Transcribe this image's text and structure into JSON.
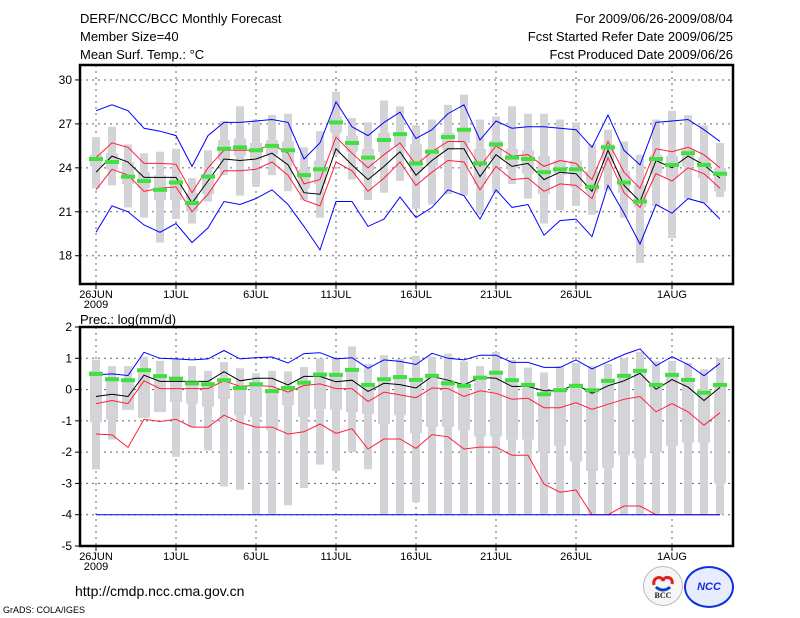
{
  "header": {
    "title": "DERF/NCC/BCC Monthly Forecast",
    "member_size": "Member Size=40",
    "variable": "Mean Surf. Temp.: °C",
    "period": "For 2009/06/26-2009/08/04",
    "started": "Fcst Started Refer Date 2009/06/25",
    "produced": "Fcst Produced Date 2009/06/26"
  },
  "footer": {
    "url": "http://cmdp.ncc.cma.gov.cn",
    "grads": "GrADS: COLA/IGES",
    "logo_bcc": "BCC",
    "logo_ncc": "NCC"
  },
  "colors": {
    "envelope": "#0000ff",
    "spread": "#ff1e3c",
    "mean": "#000000",
    "marker": "#40e040",
    "box": "#d4d4d8"
  },
  "chart_data": [
    {
      "type": "box-line",
      "title": "Mean Surf. Temp.: °C",
      "ylim": [
        16.07,
        31.02
      ],
      "yticks": [
        30,
        27,
        24,
        21,
        18
      ],
      "xticks": [
        {
          "day": 0,
          "label": "26JUN",
          "sub": "2009"
        },
        {
          "day": 5,
          "label": "1JUL"
        },
        {
          "day": 10,
          "label": "6JUL"
        },
        {
          "day": 15,
          "label": "11JUL"
        },
        {
          "day": 20,
          "label": "16JUL"
        },
        {
          "day": 25,
          "label": "21JUL"
        },
        {
          "day": 30,
          "label": "26JUL"
        },
        {
          "day": 36,
          "label": "1AUG"
        }
      ],
      "grid": true,
      "whisker_hi": [
        26.1,
        26.8,
        25.6,
        25.0,
        25.1,
        25.3,
        23.3,
        25.2,
        27.2,
        28.2,
        27.3,
        27.6,
        27.7,
        25.4,
        26.5,
        29.2,
        27.4,
        27.1,
        28.6,
        28.2,
        26.9,
        27.3,
        28.3,
        29.0,
        27.3,
        27.5,
        28.2,
        27.7,
        27.7,
        27.3,
        27.1,
        25.6,
        26.6,
        25.8,
        24.9,
        27.3,
        27.9,
        27.6,
        26.9,
        25.7
      ],
      "box_hi": [
        24.9,
        25.0,
        24.4,
        23.7,
        23.5,
        23.4,
        22.3,
        23.5,
        25.9,
        26.0,
        25.7,
        25.9,
        25.8,
        23.9,
        24.5,
        27.5,
        26.2,
        25.3,
        26.4,
        26.4,
        25.6,
        25.3,
        26.4,
        26.7,
        25.3,
        25.9,
        25.3,
        25.2,
        24.8,
        24.5,
        24.5,
        23.8,
        25.6,
        23.8,
        22.8,
        24.9,
        24.8,
        25.3,
        24.7,
        24.0
      ],
      "box_lo": [
        24.1,
        23.9,
        22.9,
        22.6,
        21.8,
        21.8,
        21.0,
        22.2,
        24.5,
        24.8,
        24.5,
        24.9,
        24.4,
        22.6,
        22.9,
        26.4,
        25.1,
        23.5,
        25.1,
        25.4,
        23.7,
        24.1,
        25.2,
        25.7,
        22.9,
        24.6,
        24.0,
        23.6,
        22.2,
        23.5,
        22.7,
        22.3,
        24.3,
        22.3,
        21.3,
        23.6,
        23.3,
        24.1,
        23.3,
        22.4
      ],
      "whisker_lo": [
        22.6,
        22.8,
        21.3,
        20.6,
        18.9,
        20.5,
        20.2,
        21.7,
        23.5,
        22.1,
        22.7,
        23.5,
        22.4,
        21.8,
        20.6,
        24.9,
        23.2,
        21.8,
        22.3,
        23.1,
        21.2,
        21.5,
        22.2,
        22.1,
        20.8,
        22.3,
        22.9,
        21.9,
        20.2,
        21.1,
        21.4,
        20.8,
        22.5,
        20.6,
        17.5,
        21.4,
        19.2,
        21.9,
        21.6,
        22.0
      ],
      "series": [
        {
          "name": "max",
          "color": "#0000ff",
          "values": [
            27.9,
            28.3,
            27.9,
            26.7,
            26.5,
            26.2,
            24.1,
            26.2,
            27.1,
            27.1,
            27.2,
            27.3,
            27.1,
            24.6,
            25.7,
            28.5,
            26.8,
            26.2,
            27.1,
            27.8,
            26.0,
            26.6,
            27.7,
            28.3,
            25.9,
            27.2,
            26.7,
            26.8,
            26.8,
            26.7,
            26.6,
            25.4,
            27.6,
            25.2,
            24.2,
            27.1,
            27.2,
            27.3,
            26.6,
            25.8
          ]
        },
        {
          "name": "upper",
          "color": "#ff1e3c",
          "values": [
            24.7,
            25.7,
            25.4,
            24.3,
            24.3,
            24.25,
            22.3,
            24.0,
            25.2,
            25.2,
            25.2,
            25.6,
            25.0,
            22.9,
            23.2,
            26.1,
            25.0,
            24.0,
            24.9,
            25.7,
            24.2,
            25.1,
            25.8,
            25.8,
            24.1,
            25.5,
            24.8,
            24.9,
            24.1,
            24.5,
            24.3,
            23.2,
            25.8,
            23.7,
            22.6,
            25.3,
            25.1,
            25.4,
            24.9,
            24.0
          ]
        },
        {
          "name": "mean",
          "color": "#000000",
          "values": [
            23.7,
            24.8,
            24.4,
            23.35,
            23.35,
            23.35,
            21.6,
            23.1,
            24.6,
            24.5,
            24.6,
            25.0,
            24.2,
            22.3,
            22.2,
            25.3,
            24.2,
            23.2,
            24.1,
            25.1,
            23.5,
            24.5,
            25.3,
            25.3,
            23.4,
            24.9,
            24.1,
            24.3,
            23.2,
            23.7,
            23.6,
            22.4,
            25.2,
            22.8,
            21.7,
            24.5,
            24.0,
            24.8,
            24.2,
            23.3
          ]
        },
        {
          "name": "lower",
          "color": "#ff1e3c",
          "values": [
            22.5,
            23.9,
            23.5,
            22.4,
            22.6,
            22.7,
            21.0,
            22.2,
            23.8,
            23.8,
            23.9,
            24.4,
            23.5,
            21.8,
            21.4,
            24.4,
            23.8,
            22.4,
            23.3,
            24.4,
            22.8,
            23.7,
            24.5,
            24.4,
            22.5,
            24.1,
            23.2,
            23.3,
            22.4,
            22.9,
            22.8,
            21.9,
            24.7,
            22.3,
            21.3,
            23.6,
            23.1,
            24.0,
            23.6,
            22.6
          ]
        },
        {
          "name": "min",
          "color": "#0000ff",
          "values": [
            19.6,
            21.4,
            21.0,
            20.1,
            19.6,
            20.2,
            18.9,
            19.9,
            21.7,
            21.5,
            21.9,
            22.5,
            21.5,
            20.0,
            18.4,
            21.7,
            21.7,
            20.0,
            20.5,
            22.0,
            20.6,
            21.3,
            22.5,
            22.1,
            20.5,
            22.5,
            21.3,
            21.5,
            19.4,
            20.4,
            20.5,
            19.3,
            22.8,
            20.9,
            18.8,
            21.5,
            20.9,
            21.9,
            21.6,
            20.5
          ]
        }
      ],
      "markers": [
        24.6,
        24.4,
        23.4,
        23.1,
        22.5,
        23.0,
        21.6,
        23.4,
        25.3,
        25.4,
        25.2,
        25.5,
        25.2,
        23.5,
        23.9,
        27.1,
        25.7,
        24.7,
        25.9,
        26.3,
        24.3,
        25.1,
        26.1,
        26.6,
        24.3,
        25.6,
        24.7,
        24.6,
        23.7,
        23.9,
        23.9,
        22.7,
        25.4,
        23.0,
        21.7,
        24.6,
        24.2,
        25.0,
        24.2,
        23.6
      ]
    },
    {
      "type": "box-line",
      "title": "Prec.: log(mm/d)",
      "ylim": [
        -5,
        2
      ],
      "yticks": [
        2,
        1,
        0,
        -1,
        -2,
        -3,
        -4,
        -5
      ],
      "xticks": [
        {
          "day": 0,
          "label": "26JUN",
          "sub": "2009"
        },
        {
          "day": 5,
          "label": "1JUL"
        },
        {
          "day": 10,
          "label": "6JUL"
        },
        {
          "day": 15,
          "label": "11JUL"
        },
        {
          "day": 20,
          "label": "16JUL"
        },
        {
          "day": 25,
          "label": "21JUL"
        },
        {
          "day": 30,
          "label": "26JUL"
        },
        {
          "day": 36,
          "label": "1AUG"
        }
      ],
      "grid": true,
      "whisker_hi": [
        0.95,
        0.75,
        0.75,
        1.05,
        0.92,
        0.98,
        0.75,
        0.6,
        0.88,
        0.68,
        0.52,
        0.6,
        0.58,
        0.72,
        1.0,
        1.0,
        1.38,
        0.82,
        1.1,
        0.98,
        1.08,
        1.05,
        1.15,
        0.9,
        0.75,
        1.2,
        0.95,
        0.7,
        0.55,
        0.75,
        0.85,
        0.75,
        0.82,
        1.0,
        1.2,
        0.9,
        0.92,
        0.85,
        0.65,
        1.0
      ],
      "box_hi": [
        0.6,
        0.4,
        0.35,
        0.6,
        0.45,
        0.4,
        0.25,
        0.2,
        0.35,
        0.1,
        0.2,
        0.0,
        0.1,
        0.3,
        0.5,
        0.5,
        0.65,
        0.2,
        0.35,
        0.45,
        0.35,
        0.5,
        0.3,
        0.2,
        0.4,
        0.55,
        0.35,
        0.2,
        -0.1,
        0.05,
        0.15,
        0.0,
        0.3,
        0.45,
        0.6,
        0.2,
        0.5,
        0.35,
        0.0,
        0.2
      ],
      "box_lo": [
        -1.05,
        -0.95,
        -0.65,
        -0.9,
        -0.72,
        -0.4,
        -0.45,
        -0.55,
        -0.3,
        -0.82,
        -0.88,
        -1.3,
        -0.5,
        -0.88,
        -0.62,
        -0.65,
        -0.72,
        -0.78,
        -1.1,
        -0.82,
        -1.4,
        -1.2,
        -1.2,
        -1.3,
        -1.5,
        -1.5,
        -1.6,
        -1.6,
        -2.0,
        -1.8,
        -2.3,
        -2.6,
        -2.5,
        -2.1,
        -2.2,
        -2.0,
        -1.8,
        -1.7,
        -1.7,
        -3.0
      ],
      "whisker_lo": [
        -2.55,
        -1.6,
        -0.65,
        -0.9,
        -0.72,
        -2.15,
        -1.2,
        -1.95,
        -3.1,
        -3.2,
        -4.0,
        -4.0,
        -3.7,
        -3.15,
        -2.4,
        -2.6,
        -2.0,
        -2.55,
        -4.0,
        -4.0,
        -3.6,
        -4.0,
        -4.0,
        -4.0,
        -4.0,
        -4.0,
        -4.0,
        -4.0,
        -4.0,
        -4.0,
        -4.0,
        -4.0,
        -4.0,
        -4.0,
        -4.0,
        -4.0,
        -4.0,
        -4.0,
        -4.0,
        -4.0
      ],
      "series": [
        {
          "name": "max",
          "color": "#0000ff",
          "values": [
            0.47,
            0.5,
            0.45,
            1.19,
            1.0,
            0.98,
            0.95,
            0.98,
            1.25,
            0.98,
            1.02,
            1.04,
            0.85,
            1.15,
            1.18,
            0.98,
            1.02,
            0.68,
            0.95,
            0.9,
            0.8,
            1.16,
            1.0,
            0.95,
            1.1,
            1.1,
            0.87,
            0.87,
            0.71,
            0.71,
            0.95,
            0.66,
            0.89,
            1.12,
            1.3,
            0.76,
            1.05,
            0.8,
            0.44,
            0.84
          ]
        },
        {
          "name": "upper",
          "color": "#ff1e3c",
          "values": [
            -0.45,
            -0.35,
            -0.45,
            0.28,
            0.03,
            0.03,
            0.03,
            0.03,
            0.28,
            0.1,
            0.13,
            0.1,
            -0.08,
            0.13,
            0.18,
            0.03,
            0.03,
            -0.38,
            -0.08,
            -0.17,
            -0.26,
            0.05,
            0.03,
            -0.22,
            -0.04,
            -0.12,
            -0.31,
            -0.28,
            -0.58,
            -0.58,
            -0.42,
            -0.63,
            -0.47,
            -0.31,
            -0.22,
            -0.71,
            -0.45,
            -0.71,
            -1.14,
            -0.74
          ]
        },
        {
          "name": "mean",
          "color": "#000000",
          "values": [
            -0.22,
            -0.15,
            -0.22,
            0.46,
            0.26,
            0.26,
            0.26,
            0.26,
            0.57,
            0.28,
            0.36,
            0.36,
            0.15,
            0.42,
            0.42,
            0.25,
            0.3,
            -0.06,
            0.2,
            0.16,
            0.05,
            0.42,
            0.3,
            0.15,
            0.39,
            0.36,
            0.1,
            0.1,
            -0.04,
            -0.04,
            0.17,
            -0.12,
            0.12,
            0.28,
            0.52,
            0.01,
            0.32,
            0.08,
            -0.35,
            0.07
          ]
        },
        {
          "name": "lower",
          "color": "#ff1e3c",
          "values": [
            -1.42,
            -1.45,
            -1.85,
            -0.95,
            -1.02,
            -0.95,
            -1.2,
            -1.2,
            -0.82,
            -1.05,
            -1.2,
            -1.2,
            -1.42,
            -1.35,
            -1.1,
            -1.4,
            -1.25,
            -1.9,
            -1.58,
            -1.58,
            -1.88,
            -1.44,
            -1.51,
            -1.9,
            -1.84,
            -1.84,
            -2.1,
            -2.1,
            -3.02,
            -3.28,
            -3.21,
            -4.0,
            -4.0,
            -3.72,
            -3.72,
            -4.0,
            -4.0,
            -4.0,
            -4.0,
            -4.0
          ]
        },
        {
          "name": "min",
          "color": "#0000ff",
          "values": [
            -4,
            -4,
            -4,
            -4,
            -4,
            -4,
            -4,
            -4,
            -4,
            -4,
            -4,
            -4,
            -4,
            -4,
            -4,
            -4,
            -4,
            -4,
            -4,
            -4,
            -4,
            -4,
            -4,
            -4,
            -4,
            -4,
            -4,
            -4,
            -4,
            -4,
            -4,
            -4,
            -4,
            -4,
            -4,
            -4,
            -4,
            -4,
            -4,
            -4
          ]
        }
      ],
      "markers": [
        0.5,
        0.33,
        0.3,
        0.62,
        0.43,
        0.35,
        0.2,
        0.17,
        0.3,
        0.05,
        0.17,
        -0.05,
        0.05,
        0.22,
        0.48,
        0.47,
        0.63,
        0.15,
        0.33,
        0.4,
        0.31,
        0.44,
        0.2,
        0.12,
        0.38,
        0.54,
        0.3,
        0.15,
        -0.15,
        -0.02,
        0.12,
        -0.02,
        0.28,
        0.44,
        0.6,
        0.15,
        0.47,
        0.31,
        -0.1,
        0.15
      ]
    }
  ]
}
